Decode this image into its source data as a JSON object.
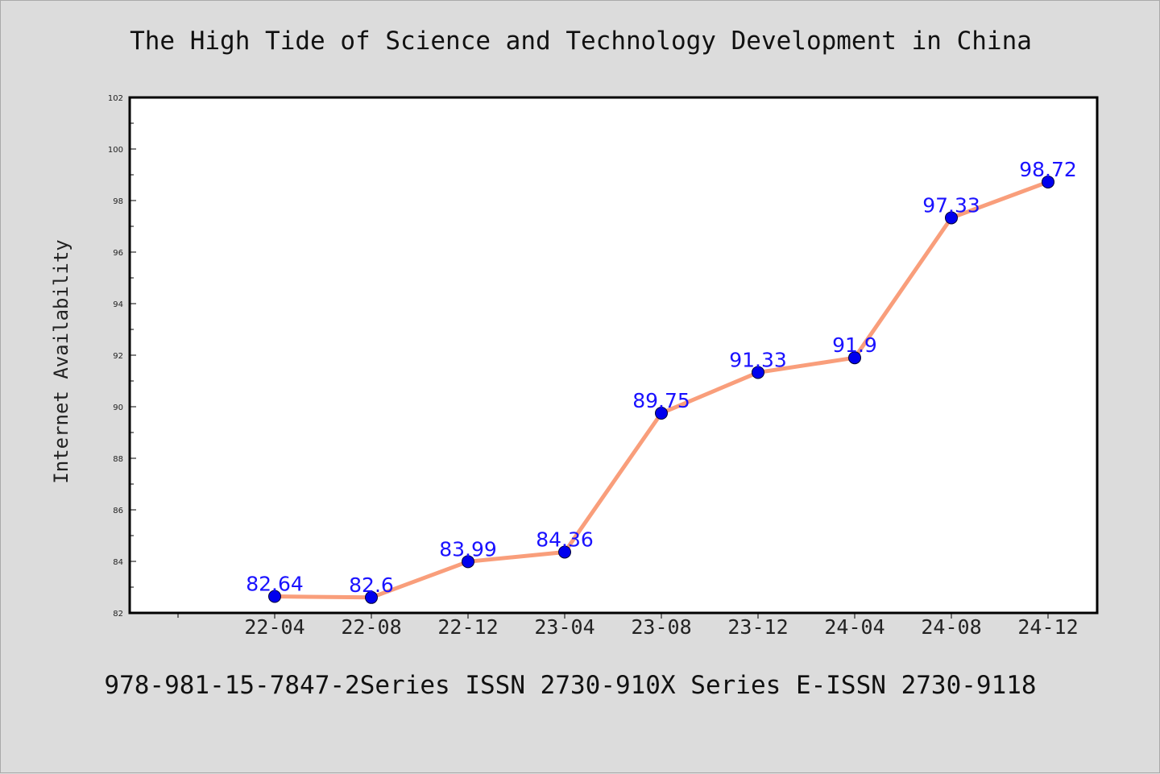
{
  "chart_data": {
    "type": "line",
    "title": "The High Tide of Science and Technology Development in China",
    "xlabel": "",
    "ylabel": "Internet Availability",
    "categories": [
      "22-04",
      "22-08",
      "22-12",
      "23-04",
      "23-08",
      "23-12",
      "24-04",
      "24-08",
      "24-12"
    ],
    "series": [
      {
        "values": [
          82.64,
          82.6,
          83.99,
          84.36,
          89.75,
          91.33,
          91.9,
          97.33,
          98.72
        ],
        "data_labels": [
          "82.64",
          "82.6",
          "83.99",
          "84.36",
          "89.75",
          "91.33",
          "91.9",
          "97.33",
          "98.72"
        ],
        "line_color": "#f99e7b",
        "marker_color": "#0000ee"
      }
    ],
    "ylim": [
      82,
      102
    ],
    "yticks": [
      "82",
      "84",
      "86",
      "88",
      "90",
      "92",
      "94",
      "96",
      "98",
      "100",
      "102"
    ],
    "grid": false,
    "legend": "none",
    "label_color": "#1a12ff"
  },
  "footer": {
    "text": "978-981-15-7847-2Series ISSN 2730-910X Series E-ISSN 2730-9118"
  }
}
